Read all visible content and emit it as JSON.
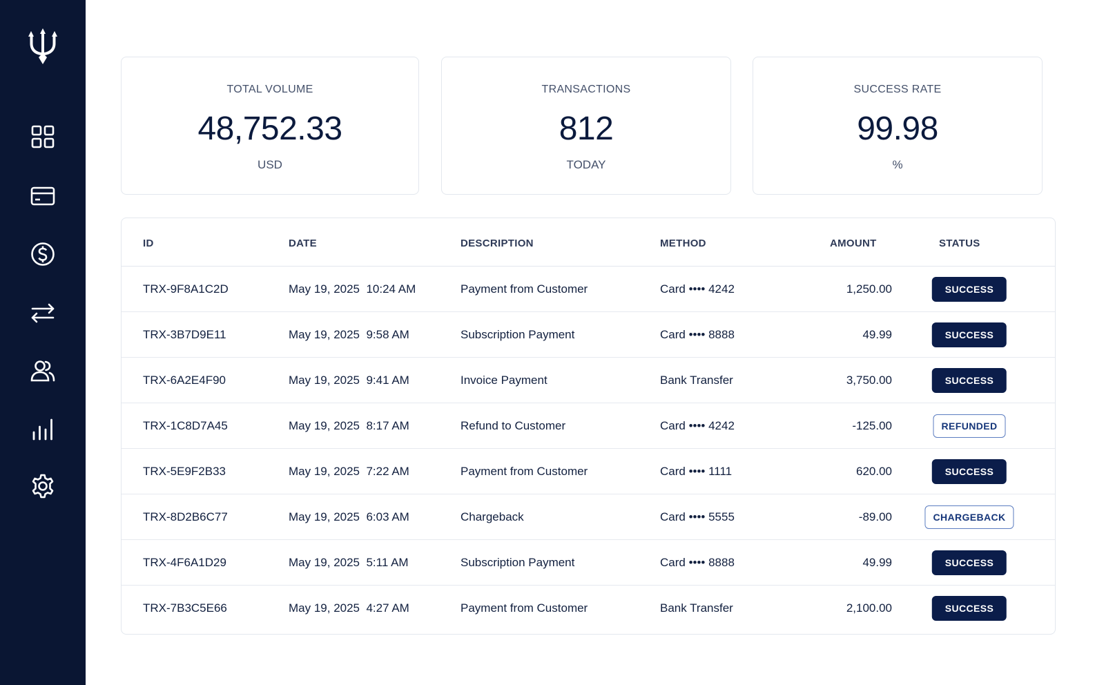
{
  "sidebar": {
    "logo_icon": "trident-icon",
    "items": [
      {
        "name": "dashboard",
        "icon": "grid-icon"
      },
      {
        "name": "cards",
        "icon": "credit-card-icon"
      },
      {
        "name": "payments",
        "icon": "dollar-icon"
      },
      {
        "name": "transfers",
        "icon": "arrows-exchange-icon"
      },
      {
        "name": "customers",
        "icon": "users-icon"
      },
      {
        "name": "reports",
        "icon": "bar-chart-icon"
      },
      {
        "name": "settings",
        "icon": "gear-icon"
      }
    ]
  },
  "stats": {
    "volume": {
      "label": "TOTAL VOLUME",
      "value": "48,752.33",
      "unit": "USD"
    },
    "transactions": {
      "label": "TRANSACTIONS",
      "value": "812",
      "unit": "TODAY"
    },
    "success_rate": {
      "label": "SUCCESS RATE",
      "value": "99.98",
      "unit": "%"
    }
  },
  "table": {
    "columns": {
      "id": "ID",
      "date": "DATE",
      "description": "DESCRIPTION",
      "method": "METHOD",
      "amount": "AMOUNT",
      "status": "STATUS"
    },
    "rows": [
      {
        "id": "TRX-9F8A1C2D",
        "date": "May 19, 2025  10:24 AM",
        "description": "Payment from Customer",
        "method": "Card •••• 4242",
        "amount": "1,250.00",
        "status": "SUCCESS"
      },
      {
        "id": "TRX-3B7D9E11",
        "date": "May 19, 2025  9:58 AM",
        "description": "Subscription Payment",
        "method": "Card •••• 8888",
        "amount": "49.99",
        "status": "SUCCESS"
      },
      {
        "id": "TRX-6A2E4F90",
        "date": "May 19, 2025  9:41 AM",
        "description": "Invoice Payment",
        "method": "Bank Transfer",
        "amount": "3,750.00",
        "status": "SUCCESS"
      },
      {
        "id": "TRX-1C8D7A45",
        "date": "May 19, 2025  8:17 AM",
        "description": "Refund to Customer",
        "method": "Card •••• 4242",
        "amount": "-125.00",
        "status": "REFUNDED"
      },
      {
        "id": "TRX-5E9F2B33",
        "date": "May 19, 2025  7:22 AM",
        "description": "Payment from Customer",
        "method": "Card •••• 1111",
        "amount": "620.00",
        "status": "SUCCESS"
      },
      {
        "id": "TRX-8D2B6C77",
        "date": "May 19, 2025  6:03 AM",
        "description": "Chargeback",
        "method": "Card •••• 5555",
        "amount": "-89.00",
        "status": "CHARGEBACK"
      },
      {
        "id": "TRX-4F6A1D29",
        "date": "May 19, 2025  5:11 AM",
        "description": "Subscription Payment",
        "method": "Card •••• 8888",
        "amount": "49.99",
        "status": "SUCCESS"
      },
      {
        "id": "TRX-7B3C5E66",
        "date": "May 19, 2025  4:27 AM",
        "description": "Payment from Customer",
        "method": "Bank Transfer",
        "amount": "2,100.00",
        "status": "SUCCESS"
      }
    ]
  },
  "colors": {
    "sidebar_bg": "#0a1633",
    "accent": "#0b1d4a",
    "outline_badge": "#16367a"
  }
}
